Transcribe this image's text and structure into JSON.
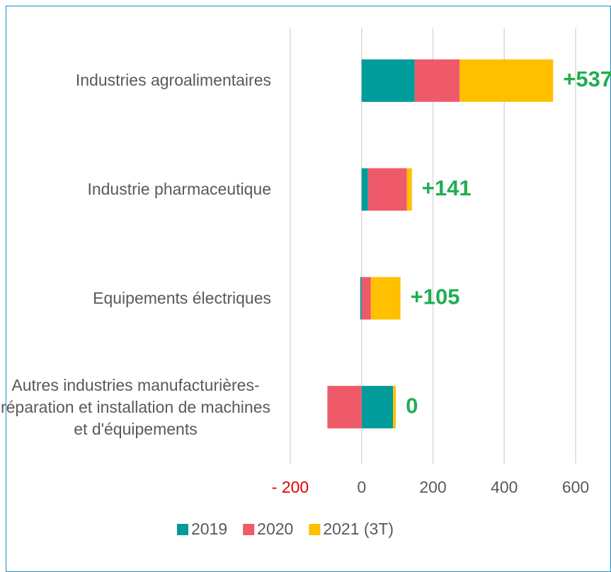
{
  "chart_data": {
    "type": "stacked_barh",
    "categories": [
      "Industries agroalimentaires",
      "Industrie pharmaceutique",
      "Equipements électriques",
      "Autres industries manufacturières- réparation et installation de machines et d'équipements"
    ],
    "series": [
      {
        "name": "2019",
        "color": "#009b9b",
        "values": [
          149,
          18,
          -4,
          88
        ]
      },
      {
        "name": "2020",
        "color": "#ee5a6a",
        "values": [
          126,
          109,
          26,
          -96
        ]
      },
      {
        "name": "2021 (3T)",
        "color": "#ffc000",
        "values": [
          262,
          14,
          83,
          8
        ]
      }
    ],
    "totals": [
      537,
      141,
      105,
      0
    ],
    "total_labels": [
      "+537",
      "+141",
      "+105",
      "0"
    ],
    "total_color": "#1fae50",
    "xlim": [
      -200,
      600
    ],
    "xticks": [
      {
        "value": -200,
        "label": "- 200"
      },
      0,
      200,
      400,
      600
    ],
    "negative_tick_color": "#e00000",
    "grid": true,
    "legend": "bottom"
  }
}
